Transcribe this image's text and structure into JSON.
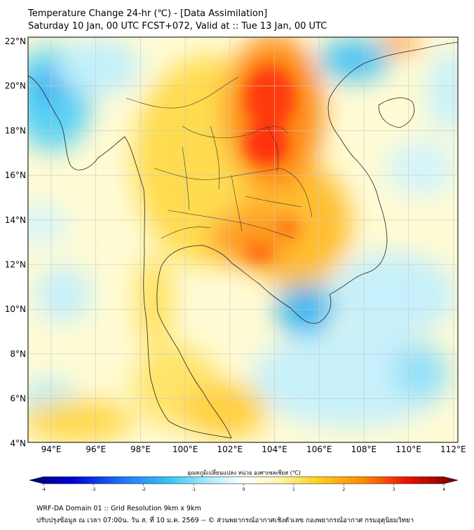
{
  "header": {
    "title": "Temperature Change 24-hr (℃) - [Data Assimilation]",
    "subtitle": "Saturday 10 Jan, 00 UTC FCST+072, Valid at :: Tue 13 Jan, 00 UTC"
  },
  "map": {
    "lat_labels": [
      "22°N",
      "20°N",
      "18°N",
      "16°N",
      "14°N",
      "12°N",
      "10°N",
      "8°N",
      "6°N",
      "4°N"
    ],
    "lon_labels": [
      "94°E",
      "96°E",
      "98°E",
      "100°E",
      "102°E",
      "104°E",
      "106°E",
      "108°E",
      "110°E",
      "112°E"
    ],
    "field": "24-hr temperature change",
    "colors": {
      "cold": "#1e90ff",
      "neutral": "#ffffff",
      "warm": "#ff2000",
      "border": "#000000"
    }
  },
  "colorbar": {
    "title": "อุณหภูมิเปลี่ยนแปลง หน่วย องศาเซลเซียส (℃)",
    "tick_labels": [
      "-4",
      "-3",
      "-2",
      "-1",
      "0",
      "1",
      "2",
      "3",
      "4"
    ],
    "range": [
      -4,
      4
    ]
  },
  "footer": {
    "line1": "WRF-DA Domain 01 :: Grid Resolution 9km x 9km",
    "line2": "ปรับปรุงข้อมูล ณ เวลา 07:00น. วัน ส. ที่ 10 ม.ค. 2569 -- © ส่วนพยากรณ์อากาศเชิงตัวเลข กองพยากรณ์อากาศ กรมอุตุนิยมวิทยา"
  }
}
